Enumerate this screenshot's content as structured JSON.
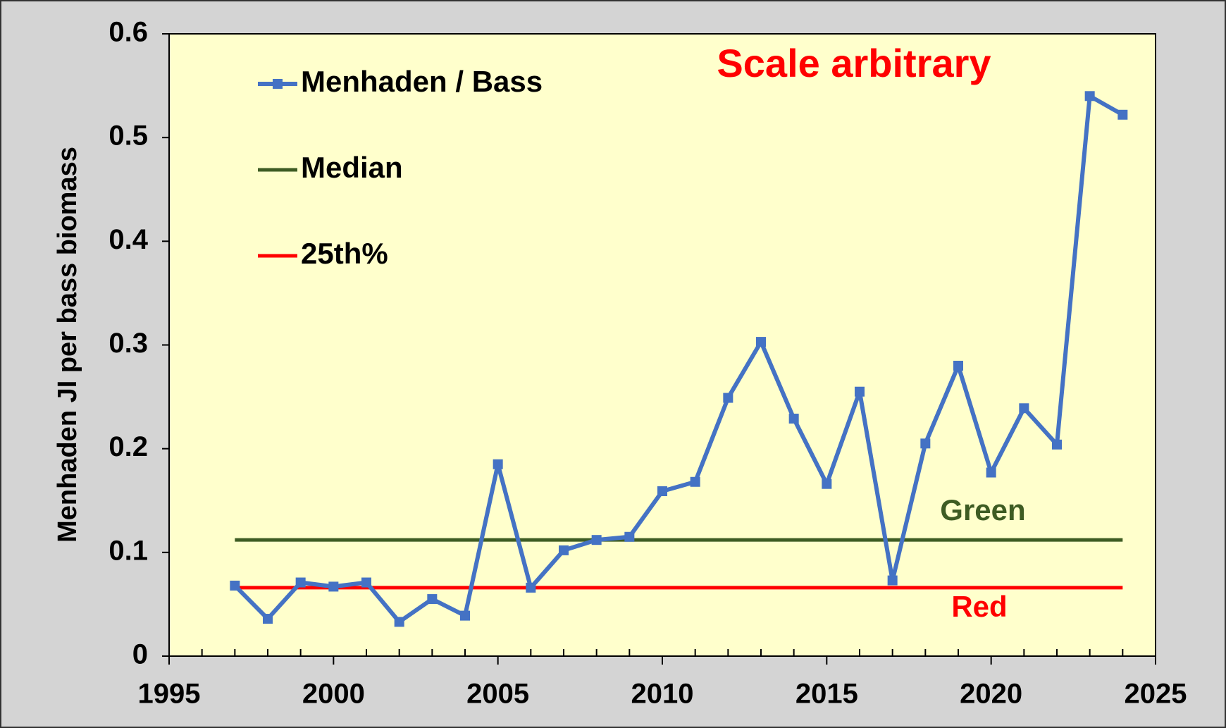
{
  "chart_data": {
    "type": "line",
    "x": [
      1997,
      1998,
      1999,
      2000,
      2001,
      2002,
      2003,
      2004,
      2005,
      2006,
      2007,
      2008,
      2009,
      2010,
      2011,
      2012,
      2013,
      2014,
      2015,
      2016,
      2017,
      2018,
      2019,
      2020,
      2021,
      2022,
      2023,
      2024
    ],
    "series": [
      {
        "name": "Menhaden / Bass",
        "color": "#4472c4",
        "values": [
          0.068,
          0.036,
          0.071,
          0.067,
          0.071,
          0.033,
          0.055,
          0.039,
          0.185,
          0.066,
          0.102,
          0.112,
          0.115,
          0.159,
          0.168,
          0.249,
          0.303,
          0.229,
          0.166,
          0.255,
          0.073,
          0.205,
          0.28,
          0.177,
          0.239,
          0.204,
          0.54,
          0.522
        ]
      }
    ],
    "reference_lines": [
      {
        "name": "Median",
        "color": "#3e5c23",
        "value": 0.112,
        "x": [
          1997,
          2024
        ]
      },
      {
        "name": "25th%",
        "color": "#ff0000",
        "value": 0.066,
        "x": [
          1997,
          2024
        ]
      }
    ],
    "y_label": "Menhaden JI per bass biomass",
    "annotations": [
      {
        "text": "Scale arbitrary",
        "color": "#ff0000"
      },
      {
        "text": "Green",
        "color": "#3e5c23"
      },
      {
        "text": "Red",
        "color": "#ff0000"
      }
    ],
    "xlim": [
      1995,
      2025
    ],
    "xticks": [
      1995,
      2000,
      2005,
      2010,
      2015,
      2020,
      2025
    ],
    "xminorticks": [
      1996,
      1997,
      1998,
      1999,
      2001,
      2002,
      2003,
      2004,
      2006,
      2007,
      2008,
      2009,
      2011,
      2012,
      2013,
      2014,
      2016,
      2017,
      2018,
      2019,
      2021,
      2022,
      2023,
      2024
    ],
    "ylim": [
      0,
      0.6
    ],
    "yticks": [
      0,
      0.1,
      0.2,
      0.3,
      0.4,
      0.5,
      0.6
    ],
    "legend": "upper left"
  }
}
